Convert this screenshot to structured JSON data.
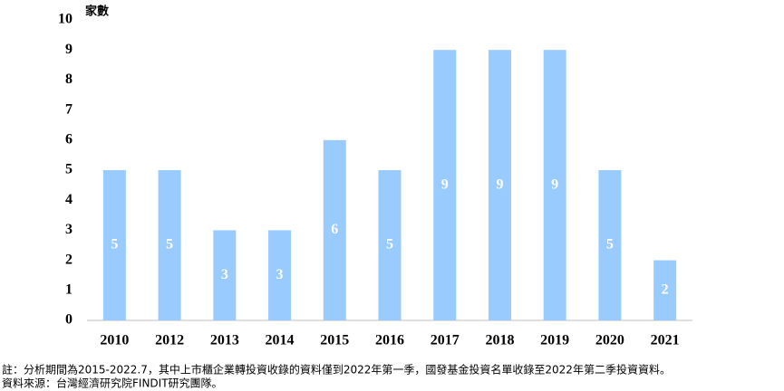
{
  "chart_data": {
    "type": "bar",
    "y_label": "家數",
    "categories": [
      "2010",
      "2012",
      "2013",
      "2014",
      "2015",
      "2016",
      "2017",
      "2018",
      "2019",
      "2020",
      "2021"
    ],
    "values": [
      5,
      5,
      3,
      3,
      6,
      5,
      9,
      9,
      9,
      5,
      2
    ],
    "color": "#99cbff",
    "ylim": [
      0,
      10
    ],
    "yticks": [
      0,
      1,
      2,
      3,
      4,
      5,
      6,
      7,
      8,
      9,
      10
    ],
    "grid": false,
    "notes": [
      "註：分析期間為2015-2022.7，其中上市櫃企業轉投資收錄的資料僅到2022年第一季，國發基金投資名單收錄至2022年第二季投資資料。",
      "資料來源：台灣經濟研究院FINDIT研究團隊。"
    ]
  }
}
